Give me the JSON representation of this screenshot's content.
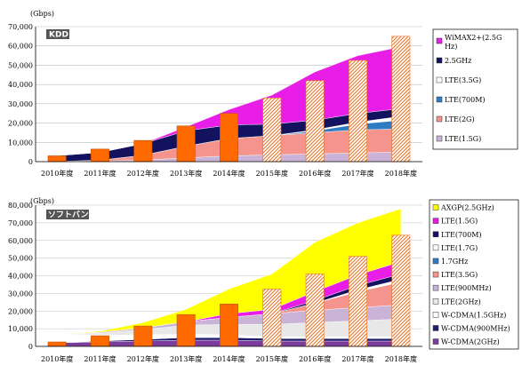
{
  "chart_data": [
    {
      "type": "area",
      "badge": "KDD",
      "unit": "(Gbps)",
      "ylim": [
        0,
        70000
      ],
      "ytick_labels": [
        "0",
        "10,000",
        "20,000",
        "30,000",
        "40,000",
        "50,000",
        "60,000",
        "70,000"
      ],
      "categories": [
        "2010年度",
        "2011年度",
        "2012年度",
        "2013年度",
        "2014年度",
        "2015年度",
        "2016年度",
        "2017年度",
        "2018年度"
      ],
      "grid": true,
      "legend_position": "right",
      "series": [
        {
          "name": "LTE(1.5G)",
          "color": "#c9b3d6",
          "values": [
            100,
            300,
            800,
            2000,
            3000,
            3500,
            4000,
            4500,
            5000
          ]
        },
        {
          "name": "LTE(2G)",
          "color": "#f4948c",
          "values": [
            0,
            500,
            2500,
            6000,
            9000,
            10000,
            11000,
            12000,
            12000
          ]
        },
        {
          "name": "LTE(700M)",
          "color": "#2f7cc4",
          "values": [
            0,
            0,
            0,
            0,
            0,
            0,
            1000,
            3000,
            4500
          ]
        },
        {
          "name": "LTE(3.5G)",
          "color": "#ffffff",
          "values": [
            0,
            0,
            0,
            0,
            0,
            0,
            500,
            1000,
            2000
          ]
        },
        {
          "name": "2.5GHz",
          "color": "#12125e",
          "values": [
            3000,
            4000,
            6000,
            8000,
            7000,
            6000,
            5000,
            4500,
            4000
          ]
        },
        {
          "name": "WiMAX2+(2.5GHz)",
          "color": "#e81ee8",
          "values": [
            0,
            0,
            0,
            2000,
            8000,
            15000,
            25000,
            30000,
            32000
          ]
        }
      ],
      "bars": {
        "color": "#ff6a00",
        "pattern_from_index": 5,
        "values": [
          3000,
          6500,
          11000,
          18500,
          25000,
          33000,
          42000,
          52500,
          65000
        ]
      },
      "legend": [
        "WiMAX2+(2.5G Hz)",
        "2.5GHz",
        "LTE(3.5G)",
        "LTE(700M)",
        "LTE(2G)",
        "LTE(1.5G)"
      ],
      "legend_colors": [
        "#e81ee8",
        "#12125e",
        "#ffffff",
        "#2f7cc4",
        "#f4948c",
        "#c9b3d6"
      ]
    },
    {
      "type": "area",
      "badge": "ソフトバンク",
      "unit": "(Gbps)",
      "ylim": [
        0,
        80000
      ],
      "ytick_labels": [
        "0",
        "10,000",
        "20,000",
        "30,000",
        "40,000",
        "50,000",
        "60,000",
        "70,000",
        "80,000"
      ],
      "categories": [
        "2010年度",
        "2011年度",
        "2012年度",
        "2013年度",
        "2014年度",
        "2015年度",
        "2016年度",
        "2017年度",
        "2018年度"
      ],
      "grid": true,
      "legend_position": "right",
      "series": [
        {
          "name": "W-CDMA(2GHz)",
          "color": "#7b3c9c",
          "values": [
            2000,
            2500,
            3000,
            3500,
            3500,
            3000,
            3000,
            3000,
            3000
          ]
        },
        {
          "name": "W-CDMA(900MHz)",
          "color": "#1e1e70",
          "values": [
            0,
            500,
            1000,
            1500,
            1500,
            1500,
            1500,
            1500,
            1500
          ]
        },
        {
          "name": "W-CDMA(1.5GHz)",
          "color": "#ffffff",
          "values": [
            5000,
            3500,
            2500,
            2000,
            1500,
            1000,
            1000,
            1000,
            1000
          ]
        },
        {
          "name": "LTE(2GHz)",
          "color": "#e8e8e8",
          "values": [
            0,
            1000,
            3000,
            5000,
            6000,
            7000,
            8000,
            9000,
            10000
          ]
        },
        {
          "name": "LTE(900MHz)",
          "color": "#c9b3d6",
          "values": [
            0,
            500,
            1000,
            2000,
            4000,
            6000,
            7000,
            7500,
            8000
          ]
        },
        {
          "name": "LTE(3.5G)",
          "color": "#f4948c",
          "values": [
            0,
            0,
            0,
            0,
            0,
            0,
            4000,
            9000,
            13000
          ]
        },
        {
          "name": "1.7GHz",
          "color": "#2f7cc4",
          "values": [
            0,
            0,
            0,
            0,
            0,
            0,
            0,
            0,
            0
          ]
        },
        {
          "name": "LTE(1.7G)",
          "color": "#ffffff",
          "values": [
            0,
            0,
            0,
            0,
            0,
            0,
            0,
            1000,
            1500
          ]
        },
        {
          "name": "LTE(700M)",
          "color": "#12125e",
          "values": [
            0,
            0,
            0,
            0,
            0,
            0,
            1500,
            2500,
            3000
          ]
        },
        {
          "name": "LTE(1.5G)",
          "color": "#e81ee8",
          "values": [
            0,
            0,
            0,
            0,
            2000,
            2500,
            5000,
            6000,
            7000
          ]
        },
        {
          "name": "AXGP(2.5GHz)",
          "color": "#ffff00",
          "values": [
            0,
            500,
            3000,
            7000,
            14000,
            20000,
            28000,
            29500,
            30000
          ]
        }
      ],
      "bars": {
        "color": "#ff6a00",
        "pattern_from_index": 5,
        "values": [
          2500,
          6000,
          11500,
          18000,
          24000,
          32500,
          41000,
          51000,
          63000
        ]
      },
      "legend": [
        "AXGP(2.5GHz)",
        "LTE(1.5G)",
        "LTE(700M)",
        "LTE(1.7G)",
        "1.7GHz",
        "LTE(3.5G)",
        "LTE(900MHz)",
        "LTE(2GHz)",
        "W-CDMA(1.5GHz)",
        "W-CDMA(900MHz)",
        "W-CDMA(2GHz)"
      ],
      "legend_colors": [
        "#ffff00",
        "#e81ee8",
        "#12125e",
        "#ffffff",
        "#2f7cc4",
        "#f4948c",
        "#c9b3d6",
        "#e8e8e8",
        "#ffffff",
        "#1e1e70",
        "#7b3c9c"
      ]
    }
  ]
}
